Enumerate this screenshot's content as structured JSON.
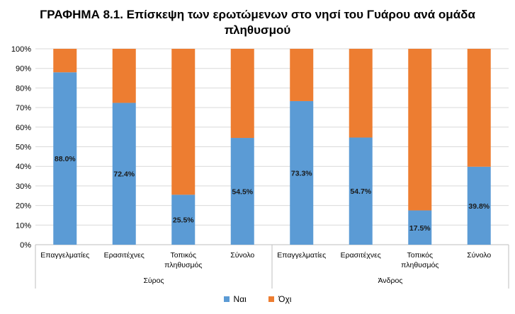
{
  "chart_data": {
    "type": "bar",
    "stacked": true,
    "percent_stacked": true,
    "title_line1": "ΓΡΑΦΗΜΑ 8.1. Επίσκεψη των ερωτώμενων στο νησί του Γυάρου ανά ομάδα",
    "title_line2": "πληθυσμού",
    "ylim": [
      0,
      100
    ],
    "yticks": [
      "0%",
      "10%",
      "20%",
      "30%",
      "40%",
      "50%",
      "60%",
      "70%",
      "80%",
      "90%",
      "100%"
    ],
    "groups": [
      {
        "name": "Σύρος",
        "categories": [
          {
            "line1": "Επαγγελματίες",
            "line2": ""
          },
          {
            "line1": "Ερασιτέχνες",
            "line2": ""
          },
          {
            "line1": "Τοπικός",
            "line2": "πληθυσμός"
          },
          {
            "line1": "Σύνολο",
            "line2": ""
          }
        ]
      },
      {
        "name": "Άνδρος",
        "categories": [
          {
            "line1": "Επαγγελματίες",
            "line2": ""
          },
          {
            "line1": "Ερασιτέχνες",
            "line2": ""
          },
          {
            "line1": "Τοπικός",
            "line2": "πληθυσμός"
          },
          {
            "line1": "Σύνολο",
            "line2": ""
          }
        ]
      }
    ],
    "series": [
      {
        "name": "Ναι",
        "color": "#5B9BD5",
        "values": [
          88.0,
          72.4,
          25.5,
          54.5,
          73.3,
          54.7,
          17.5,
          39.8
        ]
      },
      {
        "name": "Όχι",
        "color": "#ED7D31",
        "values": [
          12.0,
          27.6,
          74.5,
          45.5,
          26.7,
          45.3,
          82.5,
          60.2
        ]
      }
    ],
    "data_labels": [
      "88.0%",
      "72.4%",
      "25.5%",
      "54.5%",
      "73.3%",
      "54.7%",
      "17.5%",
      "39.8%"
    ],
    "grid": true,
    "legend_position": "bottom"
  }
}
